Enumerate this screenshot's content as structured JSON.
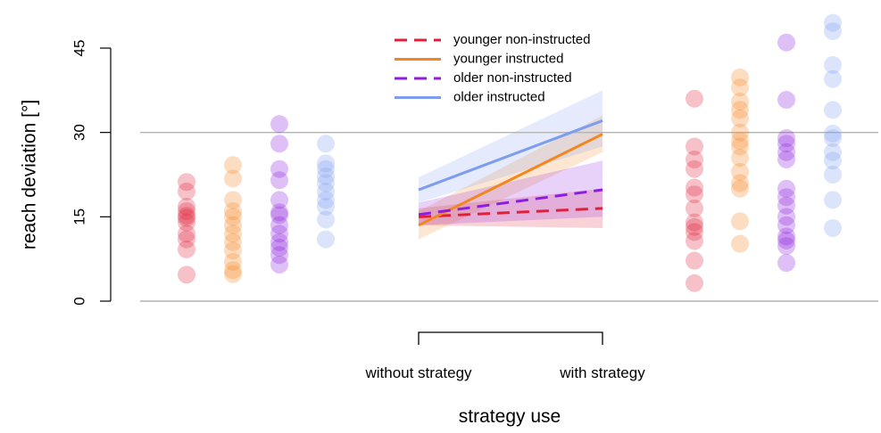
{
  "chart_data": {
    "type": "scatter",
    "ylabel": "reach deviation [°]",
    "xlabel": "strategy use",
    "ylim": [
      0,
      45
    ],
    "yticks": [
      0,
      15,
      30,
      45
    ],
    "reference_line": 30,
    "conditions": [
      "without strategy",
      "with strategy"
    ],
    "legend_position": "top-center",
    "groups": [
      {
        "name": "younger non-instructed",
        "color": "#e0203a",
        "dashed": true,
        "points_without": [
          4.7,
          9.2,
          11,
          12,
          14,
          14.8,
          15.2,
          16,
          16.8,
          19.5,
          21.2
        ],
        "points_with": [
          3.2,
          7.2,
          10.7,
          12.3,
          13.2,
          14,
          16.5,
          19,
          20.2,
          23.5,
          25.2,
          27.5,
          36
        ],
        "line": [
          15.0,
          16.5
        ],
        "band_without": [
          13.5,
          16.5
        ],
        "band_with": [
          13.0,
          20.0
        ]
      },
      {
        "name": "younger instructed",
        "color": "#f5861f",
        "dashed": false,
        "points_without": [
          4.8,
          5.5,
          7,
          9,
          10.5,
          12,
          13.5,
          15,
          16,
          18,
          21.8,
          24.2
        ],
        "points_with": [
          10.2,
          14.2,
          20,
          21,
          23,
          25.5,
          27.5,
          28.5,
          30,
          32.5,
          34,
          35.5,
          38,
          39.8
        ],
        "line": [
          13.5,
          29.7
        ],
        "band_without": [
          11.0,
          16.0
        ],
        "band_with": [
          26.5,
          33.0
        ]
      },
      {
        "name": "older non-instructed",
        "color": "#8b1ee0",
        "dashed": true,
        "points_without": [
          6.5,
          8.2,
          9.5,
          10.5,
          12,
          13.5,
          15.3,
          15.8,
          18,
          21.5,
          23.5,
          28,
          31.5
        ],
        "points_with": [
          6.8,
          9.8,
          10.8,
          11.5,
          13.5,
          15,
          17,
          18.5,
          20,
          25.2,
          26.5,
          28,
          29,
          35.8,
          46
        ],
        "line": [
          15.4,
          19.8
        ],
        "band_without": [
          13.5,
          17.5
        ],
        "band_with": [
          15.0,
          25.0
        ]
      },
      {
        "name": "older instructed",
        "color": "#7d9df0",
        "dashed": false,
        "points_without": [
          11,
          14.5,
          16.8,
          18,
          19.5,
          21,
          22.2,
          23.5,
          24.5,
          28
        ],
        "points_with": [
          13,
          18,
          22.5,
          25,
          26.5,
          29,
          29.8,
          34,
          39.5,
          42,
          48,
          49.5
        ],
        "line": [
          19.8,
          32.1
        ],
        "band_without": [
          17.5,
          22.0
        ],
        "band_with": [
          27.5,
          37.5
        ]
      }
    ]
  }
}
